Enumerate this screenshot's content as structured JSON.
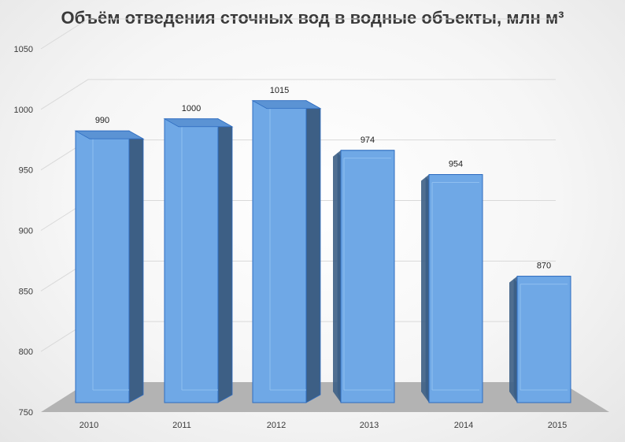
{
  "chart_data": {
    "type": "bar",
    "title": "Объём отведения сточных вод в водные объекты, млн м³",
    "categories": [
      "2010",
      "2011",
      "2012",
      "2013",
      "2014",
      "2015"
    ],
    "values": [
      990,
      1000,
      1015,
      974,
      954,
      870
    ],
    "data_labels": [
      "990",
      "1000",
      "1015",
      "974",
      "954",
      "870"
    ],
    "y_ticks": [
      "750",
      "800",
      "850",
      "900",
      "950",
      "1000",
      "1050"
    ],
    "ylim": [
      750,
      1050
    ],
    "grid": true,
    "legend": "none",
    "style": "3d-column",
    "colors": {
      "bar_front": "#6fa8e6",
      "bar_side": "#3d5f85",
      "bar_top": "#5b93d4",
      "bar_edge": "#2e6cc0",
      "floor": "#b3b3b3",
      "grid": "#d9d9d9"
    }
  }
}
